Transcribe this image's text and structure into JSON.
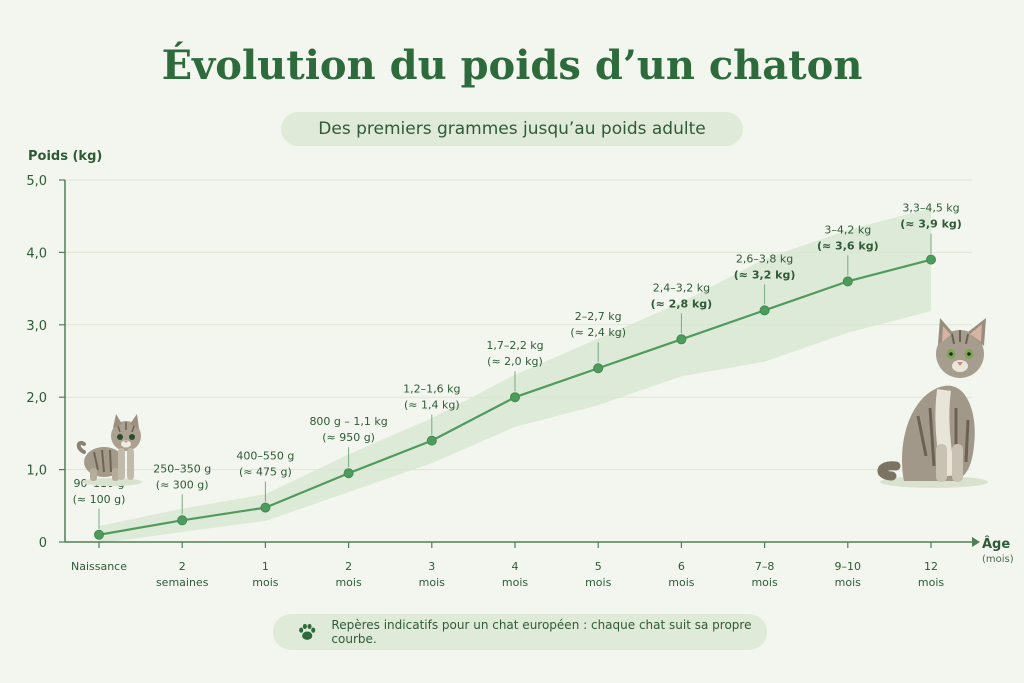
{
  "header": {
    "title": "Évolution du poids d’un chaton",
    "subtitle": "Des premiers grammes jusqu’au poids adulte"
  },
  "footer": {
    "note": "Repères indicatifs pour un chat européen : chaque chat suit sa propre courbe.",
    "icon": "paw-icon"
  },
  "colors": {
    "accent": "#2e6b3c",
    "line": "#4f9a5d",
    "band": "#d6e6cf",
    "background": "#f3f6ee"
  },
  "chart_data": {
    "type": "line",
    "ylabel": "Poids (kg)",
    "xlabel": "Âge",
    "xlabel_unit": "(mois)",
    "ylim": [
      0,
      5
    ],
    "y_ticks": [
      "0",
      "1,0",
      "2,0",
      "3,0",
      "4,0",
      "5,0"
    ],
    "grid": true,
    "categories": [
      [
        "Naissance"
      ],
      [
        "2",
        "semaines"
      ],
      [
        "1",
        "mois"
      ],
      [
        "2",
        "mois"
      ],
      [
        "3",
        "mois"
      ],
      [
        "4",
        "mois"
      ],
      [
        "5",
        "mois"
      ],
      [
        "6",
        "mois"
      ],
      [
        "7–8",
        "mois"
      ],
      [
        "9–10",
        "mois"
      ],
      [
        "12",
        "mois"
      ]
    ],
    "values": [
      0.1,
      0.3,
      0.475,
      0.95,
      1.4,
      2.0,
      2.4,
      2.8,
      3.2,
      3.6,
      3.9
    ],
    "range_low": [
      0.09,
      0.25,
      0.4,
      0.8,
      1.2,
      1.7,
      2.0,
      2.4,
      2.6,
      3.0,
      3.3
    ],
    "range_high": [
      0.11,
      0.35,
      0.55,
      1.1,
      1.6,
      2.2,
      2.7,
      3.2,
      3.8,
      4.2,
      4.5
    ],
    "labels": [
      [
        "90–110 g",
        "(≈ 100 g)"
      ],
      [
        "250–350 g",
        "(≈ 300 g)"
      ],
      [
        "400–550 g",
        "(≈ 475 g)"
      ],
      [
        "800 g – 1,1 kg",
        "(≈ 950 g)"
      ],
      [
        "1,2–1,6 kg",
        "(≈ 1,4 kg)"
      ],
      [
        "1,7–2,2 kg",
        "(≈ 2,0 kg)"
      ],
      [
        "2–2,7 kg",
        "(≈ 2,4 kg)"
      ],
      [
        "2,4–3,2 kg",
        "(≈ 2,8 kg)"
      ],
      [
        "2,6–3,8 kg",
        "(≈ 3,2 kg)"
      ],
      [
        "3–4,2 kg",
        "(≈ 3,6 kg)"
      ],
      [
        "3,3–4,5 kg",
        "(≈ 3,9 kg)"
      ]
    ]
  }
}
